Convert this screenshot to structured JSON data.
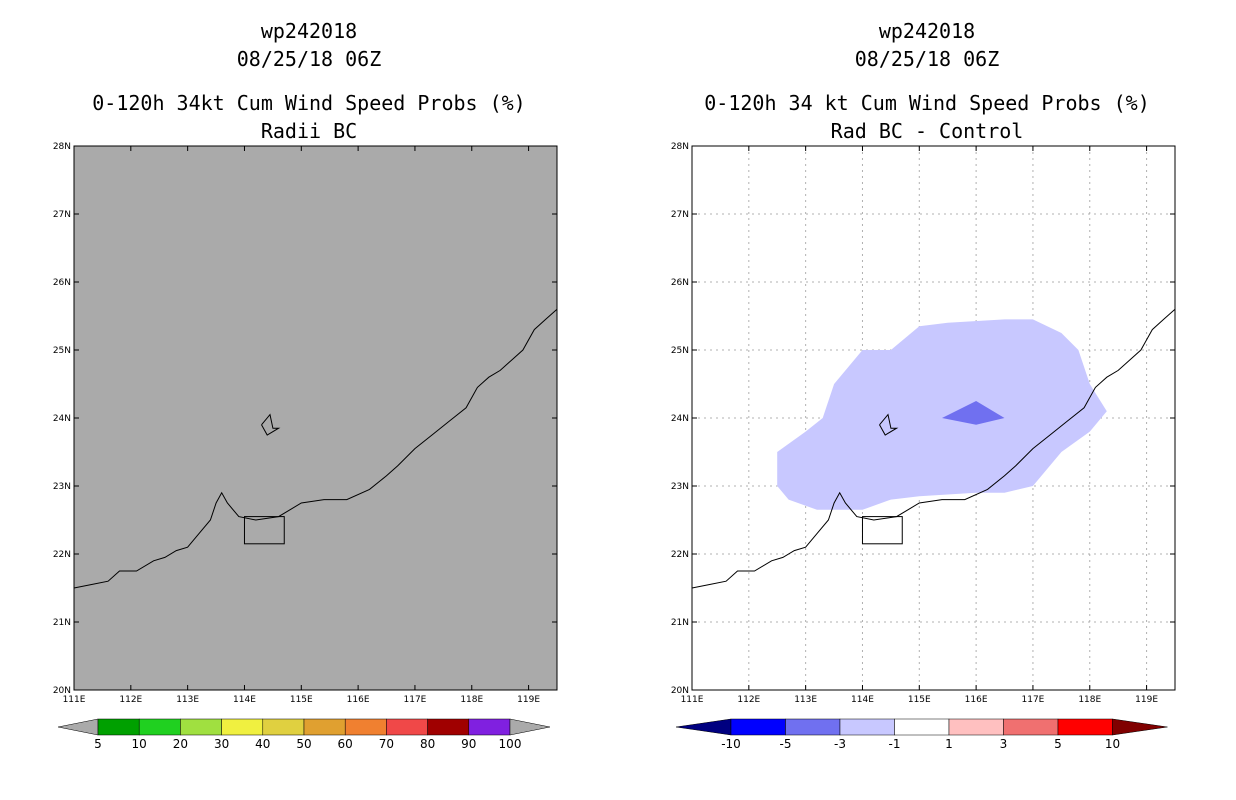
{
  "colors": {
    "left_background": "#aaaaaa",
    "right_background": "#ffffff",
    "prob_bins": [
      "#00a000",
      "#20d020",
      "#a0e040",
      "#f0f040",
      "#e0d040",
      "#e0a030",
      "#f08030",
      "#f04848",
      "#a00000",
      "#8020e0"
    ],
    "prob_under": "#aaaaaa",
    "prob_over": "#aaaaaa",
    "diff_bins": [
      "#0000ff",
      "#7070f0",
      "#c8c8ff",
      "#ffffff",
      "#ffc0c0",
      "#f07070",
      "#ff0000"
    ],
    "diff_under": "#000080",
    "diff_over": "#800000",
    "diff_fill_light": "#c8c8ff",
    "diff_fill_mid": "#7070f0"
  },
  "left_panel": {
    "title_lines": [
      "wp242018",
      "08/25/18 06Z",
      "0-120h 34kt Cum Wind Speed Probs (%)",
      "Radii BC"
    ]
  },
  "right_panel": {
    "title_lines": [
      "wp242018",
      "08/25/18 06Z",
      "0-120h 34 kt Cum Wind Speed Probs (%)",
      "Rad BC - Control"
    ]
  },
  "chart_data": [
    {
      "type": "heatmap",
      "title": "0-120h 34kt Cum Wind Speed Probs (%)",
      "subtitle": "Radii BC",
      "storm": "wp242018",
      "time": "08/25/18 06Z",
      "xlim": [
        111,
        119.5
      ],
      "ylim": [
        20,
        28
      ],
      "x_ticks": [
        111,
        112,
        113,
        114,
        115,
        116,
        117,
        118,
        119
      ],
      "y_ticks": [
        20,
        21,
        22,
        23,
        24,
        25,
        26,
        27,
        28
      ],
      "x_tick_labels": [
        "111E",
        "112E",
        "113E",
        "114E",
        "115E",
        "116E",
        "117E",
        "118E",
        "119E"
      ],
      "y_tick_labels": [
        "20N",
        "21N",
        "22N",
        "23N",
        "24N",
        "25N",
        "26N",
        "27N",
        "28N"
      ],
      "grid": false,
      "field": "all values below 5% (entire domain shaded gray)",
      "colorbar": {
        "labels": [
          "5",
          "10",
          "20",
          "30",
          "40",
          "50",
          "60",
          "70",
          "80",
          "90",
          "100"
        ],
        "bounds": [
          5,
          10,
          20,
          30,
          40,
          50,
          60,
          70,
          80,
          90,
          100
        ]
      }
    },
    {
      "type": "heatmap",
      "title": "0-120h 34 kt Cum Wind Speed Probs (%)",
      "subtitle": "Rad BC - Control",
      "storm": "wp242018",
      "time": "08/25/18 06Z",
      "xlim": [
        111,
        119.5
      ],
      "ylim": [
        20,
        28
      ],
      "x_ticks": [
        111,
        112,
        113,
        114,
        115,
        116,
        117,
        118,
        119
      ],
      "y_ticks": [
        20,
        21,
        22,
        23,
        24,
        25,
        26,
        27,
        28
      ],
      "x_tick_labels": [
        "111E",
        "112E",
        "113E",
        "114E",
        "115E",
        "116E",
        "117E",
        "118E",
        "119E"
      ],
      "y_tick_labels": [
        "20N",
        "21N",
        "22N",
        "23N",
        "24N",
        "25N",
        "26N",
        "27N",
        "28N"
      ],
      "grid": true,
      "regions": [
        {
          "range": "-3 to -1",
          "polygon": [
            [
              112.5,
              23.5
            ],
            [
              113.0,
              23.8
            ],
            [
              113.3,
              24.0
            ],
            [
              113.5,
              24.5
            ],
            [
              114.0,
              25.0
            ],
            [
              114.5,
              25.0
            ],
            [
              115.0,
              25.35
            ],
            [
              115.5,
              25.4
            ],
            [
              116.5,
              25.45
            ],
            [
              117.0,
              25.45
            ],
            [
              117.5,
              25.25
            ],
            [
              117.8,
              25.0
            ],
            [
              118.0,
              24.5
            ],
            [
              118.3,
              24.1
            ],
            [
              118.0,
              23.8
            ],
            [
              117.5,
              23.5
            ],
            [
              117.0,
              23.0
            ],
            [
              116.5,
              22.9
            ],
            [
              116.0,
              22.9
            ],
            [
              115.0,
              22.85
            ],
            [
              114.5,
              22.8
            ],
            [
              114.0,
              22.65
            ],
            [
              113.2,
              22.65
            ],
            [
              112.7,
              22.8
            ],
            [
              112.5,
              23.0
            ]
          ]
        },
        {
          "range": "-5 to -3",
          "polygon": [
            [
              115.4,
              24.0
            ],
            [
              116.0,
              24.25
            ],
            [
              116.5,
              24.0
            ],
            [
              116.0,
              23.9
            ]
          ]
        }
      ],
      "colorbar": {
        "labels": [
          "-10",
          "-5",
          "-3",
          "-1",
          "1",
          "3",
          "5",
          "10"
        ],
        "bounds": [
          -10,
          -5,
          -3,
          -1,
          1,
          3,
          5,
          10
        ]
      }
    }
  ]
}
